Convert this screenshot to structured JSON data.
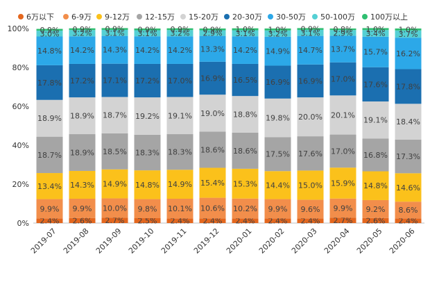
{
  "chart_data": {
    "type": "bar",
    "stacked": true,
    "percent": true,
    "categories": [
      "2019-07",
      "2019-08",
      "2019-09",
      "2019-10",
      "2019-11",
      "2019-12",
      "2020-01",
      "2020-02",
      "2020-03",
      "2020-04",
      "2020-05",
      "2020-06"
    ],
    "ylim": [
      0,
      100
    ],
    "yticks": [
      "0%",
      "20%",
      "40%",
      "60%",
      "80%",
      "100%"
    ],
    "legend_position": "top",
    "grid": false,
    "series": [
      {
        "name": "6万以下",
        "color": "#e4671e",
        "values": [
          2.4,
          2.6,
          2.7,
          2.5,
          2.4,
          2.4,
          2.4,
          2.4,
          2.4,
          2.7,
          2.6,
          2.4
        ],
        "labels": [
          "2.4%",
          "2.6%",
          "2.7%",
          "2.5%",
          "2.4%",
          "2.4%",
          "2.4%",
          "2.4%",
          "2.4%",
          "2.7%",
          "2.6%",
          "2.4%"
        ]
      },
      {
        "name": "6-9万",
        "color": "#f28e4b",
        "values": [
          9.9,
          9.9,
          10.0,
          9.8,
          10.1,
          10.6,
          10.2,
          9.9,
          9.6,
          9.9,
          9.2,
          8.6
        ],
        "labels": [
          "9.9%",
          "9.9%",
          "10.0%",
          "9.8%",
          "10.1%",
          "10.6%",
          "10.2%",
          "9.9%",
          "9.6%",
          "9.9%",
          "9.2%",
          "8.6%"
        ]
      },
      {
        "name": "9-12万",
        "color": "#fbc11b",
        "values": [
          13.4,
          14.3,
          14.9,
          14.8,
          14.9,
          15.4,
          15.3,
          14.4,
          15.0,
          15.9,
          14.8,
          14.6
        ],
        "labels": [
          "13.4%",
          "14.3%",
          "14.9%",
          "14.8%",
          "14.9%",
          "15.4%",
          "15.3%",
          "14.4%",
          "15.0%",
          "15.9%",
          "14.8%",
          "14.6%"
        ]
      },
      {
        "name": "12-15万",
        "color": "#a5a5a5",
        "values": [
          18.7,
          18.9,
          18.5,
          18.3,
          18.3,
          18.6,
          18.6,
          17.5,
          17.6,
          17.0,
          16.8,
          17.3
        ],
        "labels": [
          "18.7%",
          "18.9%",
          "18.5%",
          "18.3%",
          "18.3%",
          "18.6%",
          "18.6%",
          "17.5%",
          "17.6%",
          "17.0%",
          "16.8%",
          "17.3%"
        ]
      },
      {
        "name": "15-20万",
        "color": "#d3d3d3",
        "values": [
          18.9,
          18.9,
          18.7,
          19.2,
          19.1,
          19.0,
          18.8,
          19.8,
          20.0,
          20.1,
          19.1,
          18.4
        ],
        "labels": [
          "18.9%",
          "18.9%",
          "18.7%",
          "19.2%",
          "19.1%",
          "19.0%",
          "18.8%",
          "19.8%",
          "20.0%",
          "20.1%",
          "19.1%",
          "18.4%"
        ]
      },
      {
        "name": "20-30万",
        "color": "#1b6fb0",
        "values": [
          17.8,
          17.2,
          17.1,
          17.2,
          17.0,
          16.9,
          16.5,
          16.9,
          16.9,
          17.0,
          17.6,
          17.8
        ],
        "labels": [
          "17.8%",
          "17.2%",
          "17.1%",
          "17.2%",
          "17.0%",
          "16.9%",
          "16.5%",
          "16.9%",
          "16.9%",
          "17.0%",
          "17.6%",
          "17.8%"
        ]
      },
      {
        "name": "30-50万",
        "color": "#2ca8e8",
        "values": [
          14.8,
          14.2,
          14.3,
          14.2,
          14.2,
          13.3,
          14.2,
          14.9,
          14.7,
          13.7,
          15.7,
          16.2
        ],
        "labels": [
          "14.8%",
          "14.2%",
          "14.3%",
          "14.2%",
          "14.2%",
          "13.3%",
          "14.2%",
          "14.9%",
          "14.7%",
          "13.7%",
          "15.7%",
          "16.2%"
        ]
      },
      {
        "name": "50-100万",
        "color": "#55d0d4",
        "values": [
          3.0,
          3.2,
          3.1,
          3.1,
          3.2,
          2.9,
          3.1,
          3.2,
          3.1,
          2.9,
          3.4,
          3.7
        ],
        "labels": [
          "3.0%",
          "3.2%",
          "3.1%",
          "3.1%",
          "3.2%",
          "2.9%",
          "3.1%",
          "3.2%",
          "3.1%",
          "2.9%",
          "3.4%",
          "3.7%"
        ]
      },
      {
        "name": "100万以上",
        "color": "#2fbf71",
        "values": [
          0.9,
          0.9,
          0.9,
          0.9,
          0.9,
          0.9,
          1.0,
          1.0,
          0.9,
          0.8,
          1.0,
          1.0
        ],
        "labels": [
          "0.9%",
          "0.9%",
          "0.9%",
          "0.9%",
          "0.9%",
          "0.9%",
          "1.0%",
          "1.0%",
          "0.9%",
          "0.8%",
          "1.0%",
          "1.0%"
        ]
      }
    ]
  }
}
